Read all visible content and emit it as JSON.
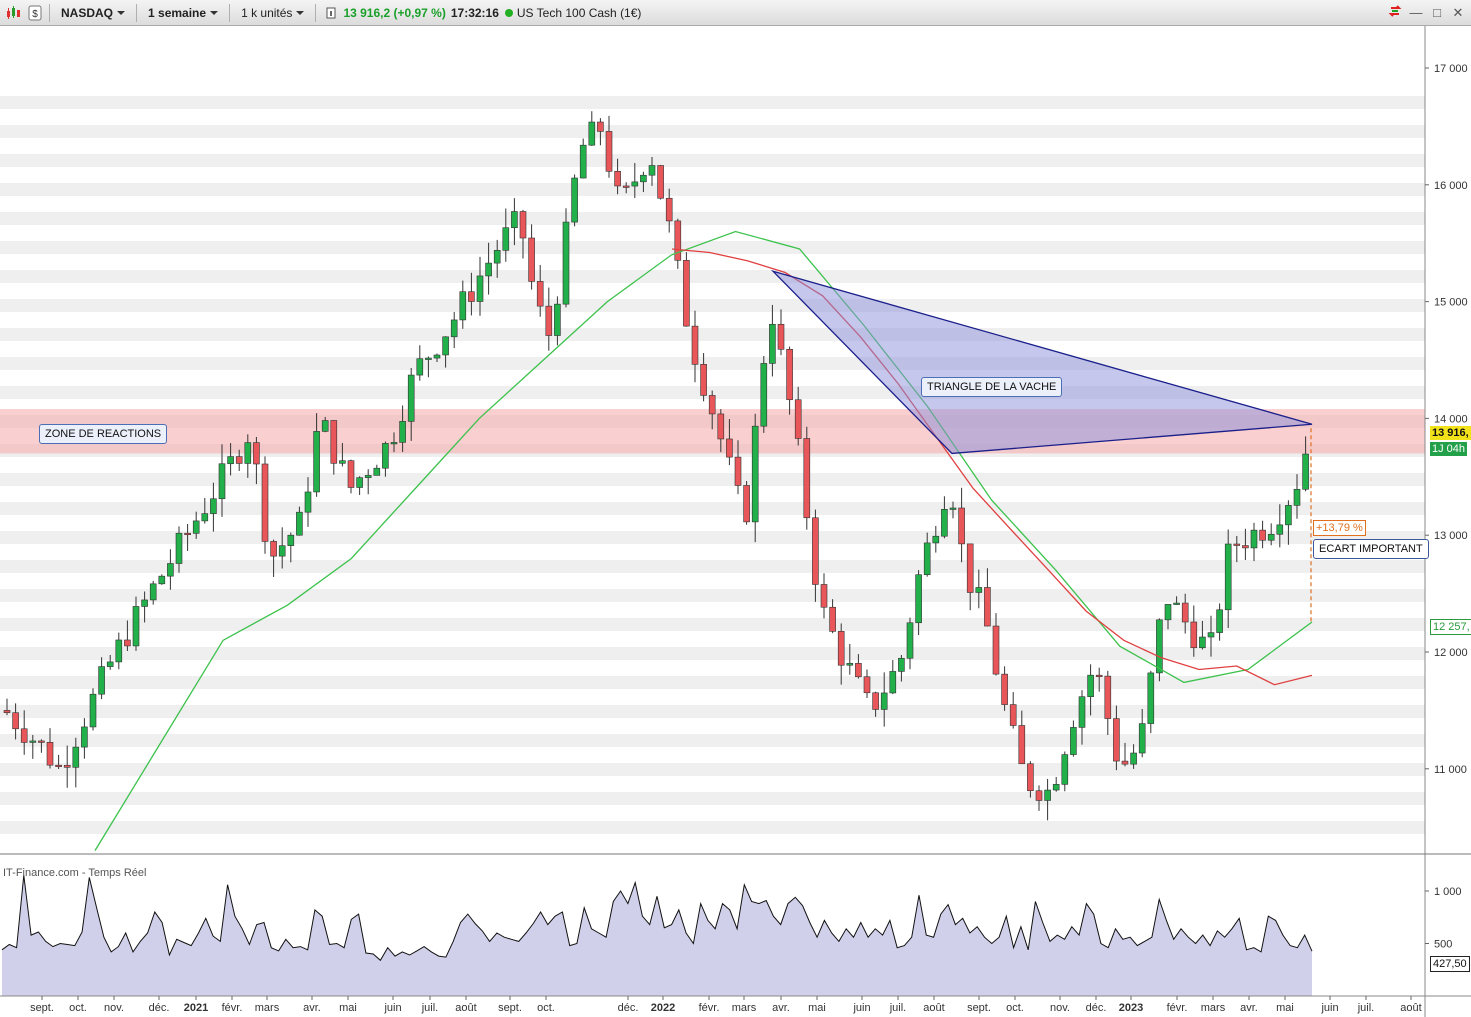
{
  "toolbar": {
    "symbol": "NASDAQ",
    "period": "1 semaine",
    "units": "1 k unités",
    "price_change": "13 916,2 (+0,97 %)",
    "time": "17:32:16",
    "instrument": "US Tech 100 Cash (1€)",
    "icons": [
      "candlestick-chart-icon",
      "dollar-icon",
      "info-icon",
      "sync-icon",
      "minimize-icon",
      "maximize-icon",
      "close-icon"
    ]
  },
  "colors": {
    "up": "#22b04a",
    "down": "#e8565a",
    "ma_red": "#e04040",
    "ma_green": "#3cc24c",
    "triangle": "#8c90dc",
    "zone": "#f4a8a8",
    "volume_fill": "#c8c8e6"
  },
  "source_label": "IT-Finance.com - Temps Réel",
  "annotations": {
    "zone": "ZONE DE REACTIONS",
    "triangle": "TRIANGLE DE LA VACHE",
    "gap": "ECART IMPORTANT",
    "gap_pct": "+13,79 %"
  },
  "price_axis": {
    "ticks": [
      "17 000",
      "16 000",
      "15 000",
      "14 000",
      "13 000",
      "12 000",
      "11 000"
    ],
    "last_price": "13 916,",
    "countdown": "1J 04h",
    "ma_value": "12 257,"
  },
  "volume_axis": {
    "ticks": [
      "1 000",
      "500"
    ],
    "last": "427,50"
  },
  "time_axis": [
    "sept.",
    "oct.",
    "nov.",
    "déc.",
    "2021",
    "févr.",
    "mars",
    "avr.",
    "mai",
    "juin",
    "juil.",
    "août",
    "sept.",
    "oct.",
    "déc.",
    "2022",
    "févr.",
    "mars",
    "avr.",
    "mai",
    "juin",
    "juil.",
    "août",
    "sept.",
    "oct.",
    "nov.",
    "déc.",
    "2023",
    "févr.",
    "mars",
    "avr.",
    "mai",
    "juin",
    "juil.",
    "août"
  ],
  "chart_data": {
    "type": "candlestick",
    "ylim": [
      10300,
      17400
    ],
    "ma_red": [
      15450,
      15420,
      15350,
      15250,
      15050,
      14700,
      14300,
      13850,
      13400,
      13050,
      12700,
      12350,
      12100,
      11950,
      11850,
      11880,
      11720,
      11800
    ],
    "ma_green": [
      10300,
      11200,
      12100,
      12400,
      12800,
      13400,
      14000,
      14500,
      15000,
      15400,
      15600,
      15450,
      14800,
      14100,
      13300,
      12700,
      12050,
      11740,
      11850,
      12257
    ],
    "volume": [
      440,
      490,
      460,
      1150,
      580,
      610,
      520,
      470,
      500,
      490,
      480,
      610,
      1130,
      840,
      560,
      420,
      470,
      600,
      420,
      520,
      600,
      800,
      700,
      390,
      540,
      510,
      480,
      600,
      740,
      570,
      520,
      1060,
      760,
      640,
      490,
      680,
      700,
      460,
      430,
      540,
      460,
      470,
      440,
      820,
      760,
      490,
      500,
      460,
      730,
      780,
      410,
      400,
      340,
      460,
      380,
      420,
      390,
      430,
      470,
      420,
      380,
      370,
      520,
      700,
      780,
      690,
      620,
      520,
      600,
      560,
      540,
      520,
      600,
      690,
      800,
      680,
      760,
      800,
      480,
      500,
      840,
      640,
      600,
      560,
      900,
      1000,
      880,
      1080,
      760,
      680,
      950,
      650,
      680,
      820,
      600,
      500,
      880,
      720,
      640,
      880,
      820,
      640,
      1060,
      900,
      880,
      910,
      760,
      680,
      880,
      940,
      860,
      700,
      560,
      720,
      600,
      520,
      640,
      560,
      700,
      560,
      640,
      580,
      720,
      460,
      480,
      560,
      960,
      580,
      560,
      780,
      870,
      680,
      740,
      600,
      660,
      560,
      500,
      560,
      760,
      460,
      660,
      440,
      900,
      700,
      520,
      580,
      540,
      660,
      580,
      880,
      780,
      500,
      460,
      640,
      540,
      560,
      480,
      520,
      560,
      920,
      720,
      540,
      640,
      560,
      500,
      580,
      480,
      620,
      560,
      640,
      740,
      440,
      460,
      420,
      760,
      720,
      580,
      480,
      460,
      580,
      427
    ]
  }
}
